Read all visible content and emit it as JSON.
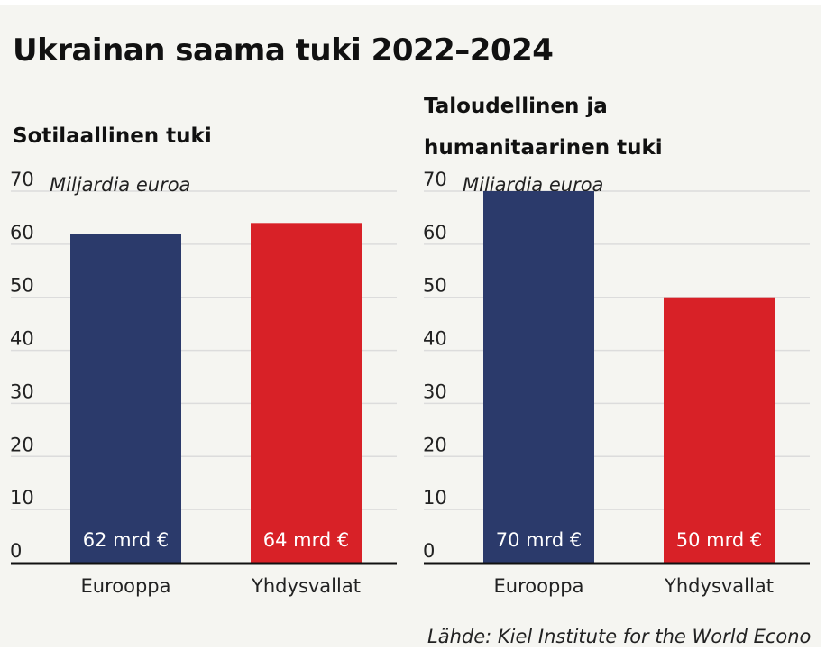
{
  "title": "Ukrainan saama tuki 2022–2024",
  "source": "Lähde: Kiel Institute for the World Econo",
  "colors": {
    "europe": "#2b3a6b",
    "usa": "#d82127",
    "grid": "#dcdcdc",
    "axis": "#111111",
    "background": "#f5f5f1"
  },
  "chart_data": [
    {
      "type": "bar",
      "title": "Sotilaallinen tuki",
      "unit_label": "Miljardia euroa",
      "categories": [
        "Eurooppa",
        "Yhdysvallat"
      ],
      "values": [
        62,
        64
      ],
      "value_labels": [
        "62 mrd €",
        "64 mrd €"
      ],
      "ylim": [
        0,
        70
      ],
      "yticks": [
        "0",
        "10",
        "20",
        "30",
        "40",
        "50",
        "60",
        "70"
      ],
      "grid": true
    },
    {
      "type": "bar",
      "title_lines": [
        "Taloudellinen ja",
        "humanitaarinen tuki"
      ],
      "unit_label": "Miljardia euroa",
      "categories": [
        "Eurooppa",
        "Yhdysvallat"
      ],
      "values": [
        70,
        50
      ],
      "value_labels": [
        "70 mrd €",
        "50 mrd €"
      ],
      "ylim": [
        0,
        70
      ],
      "yticks": [
        "0",
        "10",
        "20",
        "30",
        "40",
        "50",
        "60",
        "70"
      ],
      "grid": true
    }
  ]
}
